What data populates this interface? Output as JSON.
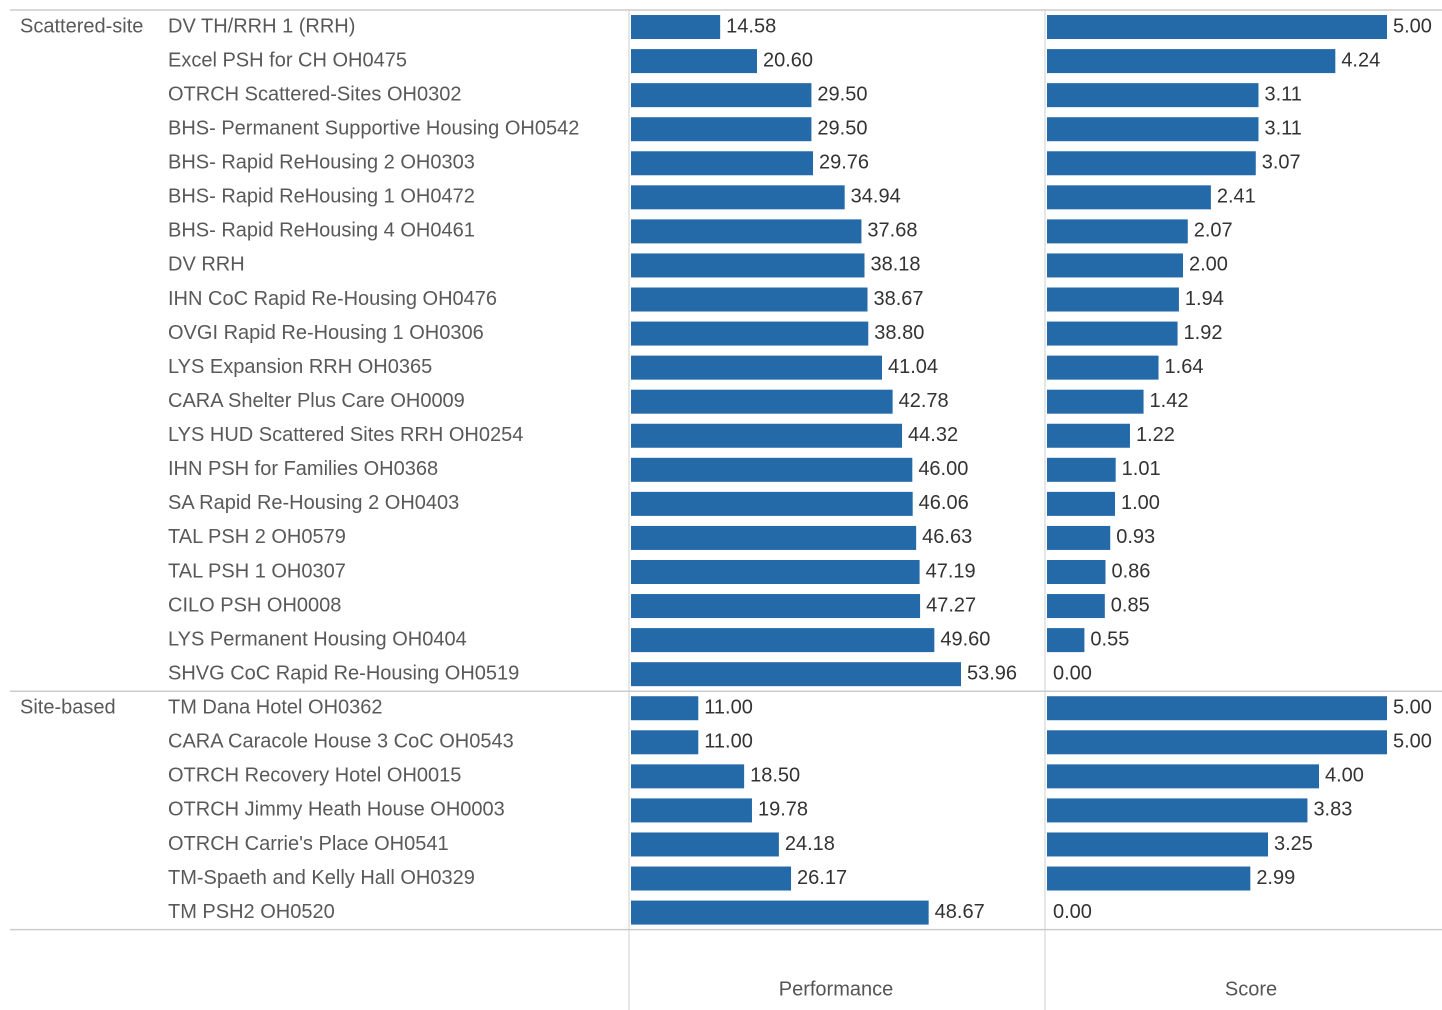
{
  "chart_data": {
    "type": "bar",
    "color": "#2469a8",
    "measures": [
      "Performance",
      "Score"
    ],
    "groups": [
      {
        "name": "Scattered-site",
        "categories": [
          "DV TH/RRH  1 (RRH)",
          "Excel PSH for CH OH0475",
          "OTRCH Scattered-Sites OH0302",
          "BHS- Permanent Supportive Housing OH0542",
          "BHS- Rapid ReHousing 2 OH0303",
          "BHS- Rapid ReHousing 1 OH0472",
          "BHS- Rapid ReHousing 4 OH0461",
          "DV RRH",
          "IHN CoC Rapid Re-Housing OH0476",
          "OVGI Rapid  Re-Housing 1 OH0306",
          "LYS Expansion RRH OH0365",
          "CARA Shelter Plus Care OH0009",
          "LYS HUD Scattered Sites RRH OH0254",
          "IHN PSH for Families OH0368",
          "SA Rapid Re-Housing 2 OH0403",
          "TAL PSH 2 OH0579",
          "TAL PSH 1 OH0307",
          "CILO PSH OH0008",
          "LYS Permanent Housing OH0404",
          "SHVG CoC Rapid Re-Housing OH0519"
        ],
        "series": [
          {
            "values": [
              14.58,
              20.6,
              29.5,
              29.5,
              29.76,
              34.94,
              37.68,
              38.18,
              38.67,
              38.8,
              41.04,
              42.78,
              44.32,
              46,
              46.06,
              46.63,
              47.19,
              47.27,
              49.6,
              53.96
            ],
            "value_labels": [
              "14.58",
              "20.60",
              "29.50",
              "29.50",
              "29.76",
              "34.94",
              "37.68",
              "38.18",
              "38.67",
              "38.80",
              "41.04",
              "42.78",
              "44.32",
              "46.00",
              "46.06",
              "46.63",
              "47.19",
              "47.27",
              "49.60",
              "53.96"
            ]
          },
          {
            "values": [
              5,
              4.24,
              3.11,
              3.11,
              3.07,
              2.41,
              2.07,
              2,
              1.94,
              1.92,
              1.64,
              1.42,
              1.22,
              1.01,
              1,
              0.93,
              0.86,
              0.85,
              0.55,
              0
            ],
            "value_labels": [
              "5.00",
              "4.24",
              "3.11",
              "3.11",
              "3.07",
              "2.41",
              "2.07",
              "2.00",
              "1.94",
              "1.92",
              "1.64",
              "1.42",
              "1.22",
              "1.01",
              "1.00",
              "0.93",
              "0.86",
              "0.85",
              "0.55",
              "0.00"
            ]
          }
        ]
      },
      {
        "name": "Site-based",
        "categories": [
          "TM Dana Hotel OH0362",
          "CARA Caracole House 3 CoC OH0543",
          "OTRCH Recovery Hotel OH0015",
          "OTRCH Jimmy Heath House OH0003",
          "OTRCH Carrie's Place OH0541",
          "TM-Spaeth and Kelly Hall OH0329",
          "TM PSH2 OH0520"
        ],
        "series": [
          {
            "values": [
              11,
              11,
              18.5,
              19.78,
              24.18,
              26.17,
              48.67
            ],
            "value_labels": [
              "11.00",
              "11.00",
              "18.50",
              "19.78",
              "24.18",
              "26.17",
              "48.67"
            ]
          },
          {
            "values": [
              5,
              5,
              4,
              3.83,
              3.25,
              2.99,
              0
            ],
            "value_labels": [
              "5.00",
              "5.00",
              "4.00",
              "3.83",
              "3.25",
              "2.99",
              "0.00"
            ]
          }
        ]
      }
    ]
  }
}
